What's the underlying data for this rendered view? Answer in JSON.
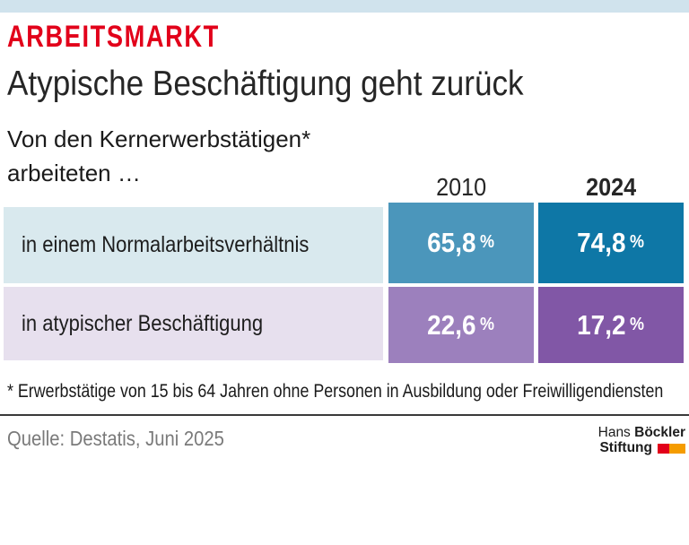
{
  "colors": {
    "topbar": "#d0e3ed",
    "accent_red": "#e2001a",
    "row1_light": "#d9e9ee",
    "row1_mid": "#4b96bb",
    "row1_dark": "#0e77a6",
    "row2_light": "#e7e0ee",
    "row2_mid": "#9c80bd",
    "row2_dark": "#8157a6",
    "logo_red": "#e2001a",
    "logo_orange": "#f59c00"
  },
  "header": {
    "kicker": "ARBEITSMARKT",
    "title": "Atypische Beschäftigung geht zurück",
    "subtitle_line1": "Von den Kernerwerbstätigen*",
    "subtitle_line2": "arbeiteten …"
  },
  "table": {
    "columns": [
      "2010",
      "2024"
    ],
    "rows": [
      {
        "label": "in einem Normalarbeitsverhältnis",
        "values": [
          {
            "value": "65,8",
            "unit": "%"
          },
          {
            "value": "74,8",
            "unit": "%"
          }
        ]
      },
      {
        "label": "in atypischer Beschäftigung",
        "values": [
          {
            "value": "22,6",
            "unit": "%"
          },
          {
            "value": "17,2",
            "unit": "%"
          }
        ]
      }
    ]
  },
  "footnote": "* Erwerbstätige von 15 bis 64 Jahren ohne Personen in Ausbildung oder Freiwilligendiensten",
  "source": "Quelle: Destatis, Juni 2025",
  "logo": {
    "name_regular": "Hans",
    "name_bold": "Böckler",
    "line2": "Stiftung"
  },
  "chart_data": {
    "type": "table",
    "title": "Atypische Beschäftigung geht zurück",
    "subtitle": "Von den Kernerwerbstätigen* arbeiteten …",
    "categories": [
      "2010",
      "2024"
    ],
    "series": [
      {
        "name": "in einem Normalarbeitsverhältnis",
        "values": [
          65.8,
          74.8
        ]
      },
      {
        "name": "in atypischer Beschäftigung",
        "values": [
          22.6,
          17.2
        ]
      }
    ],
    "unit": "%",
    "footnote": "* Erwerbstätige von 15 bis 64 Jahren ohne Personen in Ausbildung oder Freiwilligendiensten",
    "source": "Quelle: Destatis, Juni 2025"
  }
}
